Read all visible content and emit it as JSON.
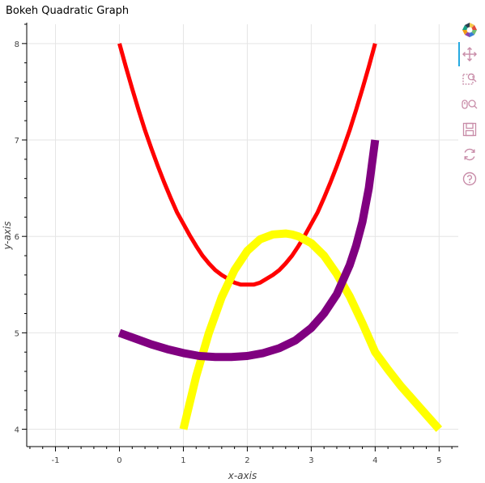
{
  "chart_data": {
    "type": "line",
    "title": "Bokeh Quadratic Graph",
    "xlabel": "x-axis",
    "ylabel": "y-axis",
    "xlim": [
      -1.45,
      5.3
    ],
    "ylim": [
      3.82,
      8.2
    ],
    "x_ticks": [
      -1,
      0,
      1,
      2,
      3,
      4,
      5
    ],
    "y_ticks": [
      4,
      5,
      6,
      7,
      8
    ],
    "grid": true,
    "series": [
      {
        "color": "#ff0000",
        "line_width": 5,
        "x": [
          0,
          0.1,
          0.2,
          0.3,
          0.4,
          0.5,
          0.6,
          0.7,
          0.8,
          0.9,
          1.0,
          1.1,
          1.2,
          1.3,
          1.4,
          1.5,
          1.6,
          1.7,
          1.8,
          1.9,
          2.0,
          2.1,
          2.2,
          2.3,
          2.4,
          2.5,
          2.6,
          2.7,
          2.8,
          2.9,
          3.0,
          3.1,
          3.2,
          3.3,
          3.4,
          3.5,
          3.6,
          3.7,
          3.8,
          3.9,
          4.0
        ],
        "y": [
          8.0,
          7.76,
          7.53,
          7.31,
          7.1,
          6.91,
          6.73,
          6.56,
          6.4,
          6.25,
          6.13,
          6.01,
          5.9,
          5.8,
          5.72,
          5.65,
          5.6,
          5.56,
          5.52,
          5.5,
          5.5,
          5.5,
          5.52,
          5.56,
          5.6,
          5.65,
          5.72,
          5.8,
          5.9,
          6.01,
          6.13,
          6.25,
          6.4,
          6.56,
          6.73,
          6.91,
          7.1,
          7.31,
          7.53,
          7.76,
          8.0
        ]
      },
      {
        "color": "#ffff00",
        "line_width": 10,
        "x": [
          1.0,
          1.2,
          1.4,
          1.6,
          1.8,
          2.0,
          2.2,
          2.4,
          2.6,
          2.7,
          2.8,
          3.0,
          3.2,
          3.4,
          3.6,
          3.8,
          4.0,
          4.2,
          4.4,
          4.6,
          4.8,
          5.0
        ],
        "y": [
          4.0,
          4.55,
          5.0,
          5.37,
          5.65,
          5.85,
          5.97,
          6.02,
          6.03,
          6.02,
          6.0,
          5.93,
          5.8,
          5.61,
          5.38,
          5.1,
          4.8,
          4.62,
          4.45,
          4.3,
          4.15,
          4.0
        ]
      },
      {
        "color": "#800080",
        "line_width": 10,
        "x": [
          0,
          0.25,
          0.5,
          0.75,
          1.0,
          1.25,
          1.5,
          1.75,
          2.0,
          2.25,
          2.5,
          2.75,
          3.0,
          3.2,
          3.4,
          3.6,
          3.7,
          3.8,
          3.9,
          3.95,
          4.0
        ],
        "y": [
          5.0,
          4.94,
          4.88,
          4.83,
          4.79,
          4.76,
          4.75,
          4.75,
          4.76,
          4.79,
          4.84,
          4.92,
          5.05,
          5.2,
          5.4,
          5.7,
          5.9,
          6.15,
          6.5,
          6.75,
          7.0
        ]
      }
    ]
  },
  "toolbar": {
    "tools": [
      "bokeh-logo-icon",
      "pan-icon",
      "box-zoom-icon",
      "wheel-zoom-icon",
      "save-icon",
      "reset-icon",
      "help-icon"
    ]
  }
}
